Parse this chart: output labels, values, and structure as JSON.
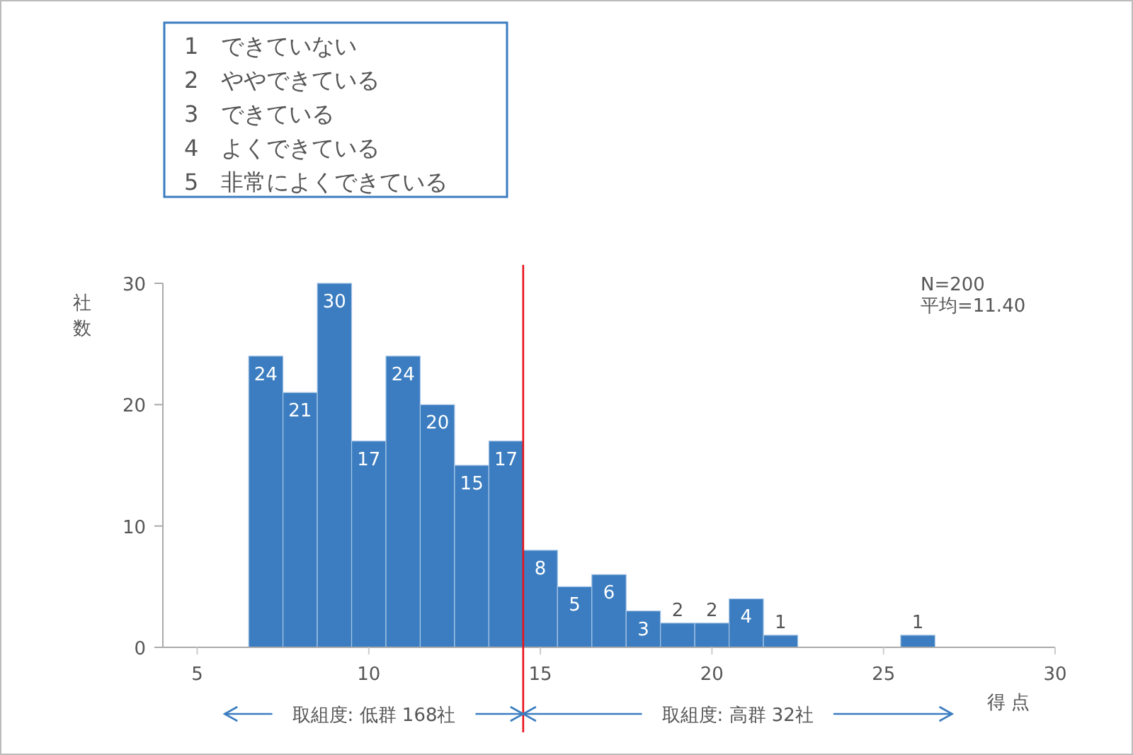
{
  "chart_data": {
    "type": "histogram",
    "bins": [
      6.5,
      7.5,
      8.5,
      9.5,
      10.5,
      11.5,
      12.5,
      13.5,
      14.5,
      15.5,
      16.5,
      17.5,
      18.5,
      19.5,
      20.5,
      21.5,
      22.5,
      23.5,
      24.5,
      25.5,
      26.5
    ],
    "values": [
      24,
      21,
      30,
      17,
      24,
      20,
      15,
      17,
      8,
      5,
      6,
      3,
      2,
      2,
      4,
      1,
      0,
      0,
      0,
      1
    ],
    "value_labels": [
      "24",
      "21",
      "30",
      "17",
      "24",
      "20",
      "15",
      "17",
      "8",
      "5",
      "6",
      "3",
      "2",
      "2",
      "4",
      "1",
      null,
      null,
      null,
      "1"
    ],
    "color": "#3b7dc0",
    "xlim": [
      4,
      30
    ],
    "xticks": [
      5,
      10,
      15,
      20,
      25,
      30
    ],
    "ylim": [
      0,
      30
    ],
    "yticks": [
      0,
      10,
      20,
      30
    ],
    "xlabel": "得 点",
    "ylabel": "社数",
    "ref_lines": [
      {
        "axis": "x",
        "value": 14.5,
        "color": "#e8141c"
      }
    ],
    "annotations": [
      "1　できていない",
      "2　ややできている",
      "3　できている",
      "4　よくできている",
      "5　非常によくできている",
      "N=200",
      "平均=11.40",
      "取組度: 低群 168社",
      "取組度: 高群 32社"
    ]
  }
}
